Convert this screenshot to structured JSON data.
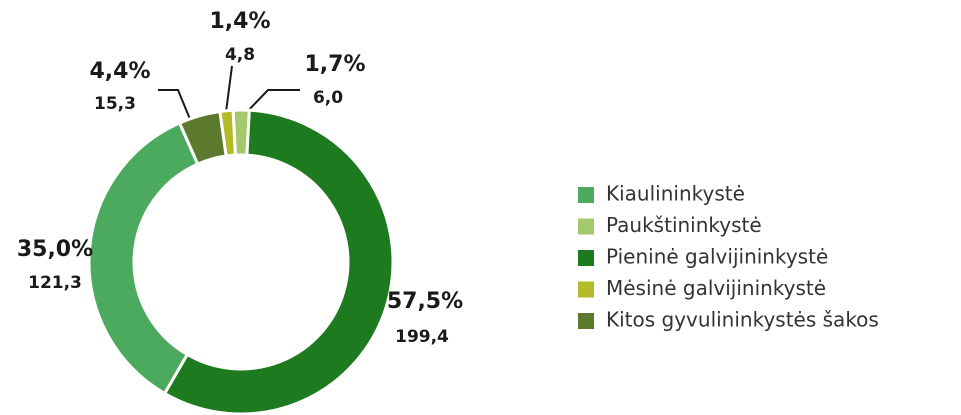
{
  "chart_data": {
    "type": "donut",
    "categories": [
      "Kiaulininkystė",
      "Paukštininkystė",
      "Pieninė galvijininkystė",
      "Mėsinė galvijininkystė",
      "Kitos gyvulininkystės šakos"
    ],
    "values": [
      35.0,
      1.7,
      57.5,
      1.4,
      4.4
    ],
    "value_labels": [
      "35,0%",
      "1,7%",
      "57,5%",
      "1,4%",
      "4,4%"
    ],
    "amounts": [
      121.3,
      6.0,
      199.4,
      4.8,
      15.3
    ],
    "amount_labels": [
      "121,3",
      "6,0",
      "199,4",
      "4,8",
      "15,3"
    ],
    "colors": [
      "#4caa5e",
      "#a3c96a",
      "#1e7a1e",
      "#b3bb27",
      "#5c7a2e"
    ],
    "legend": "right"
  }
}
